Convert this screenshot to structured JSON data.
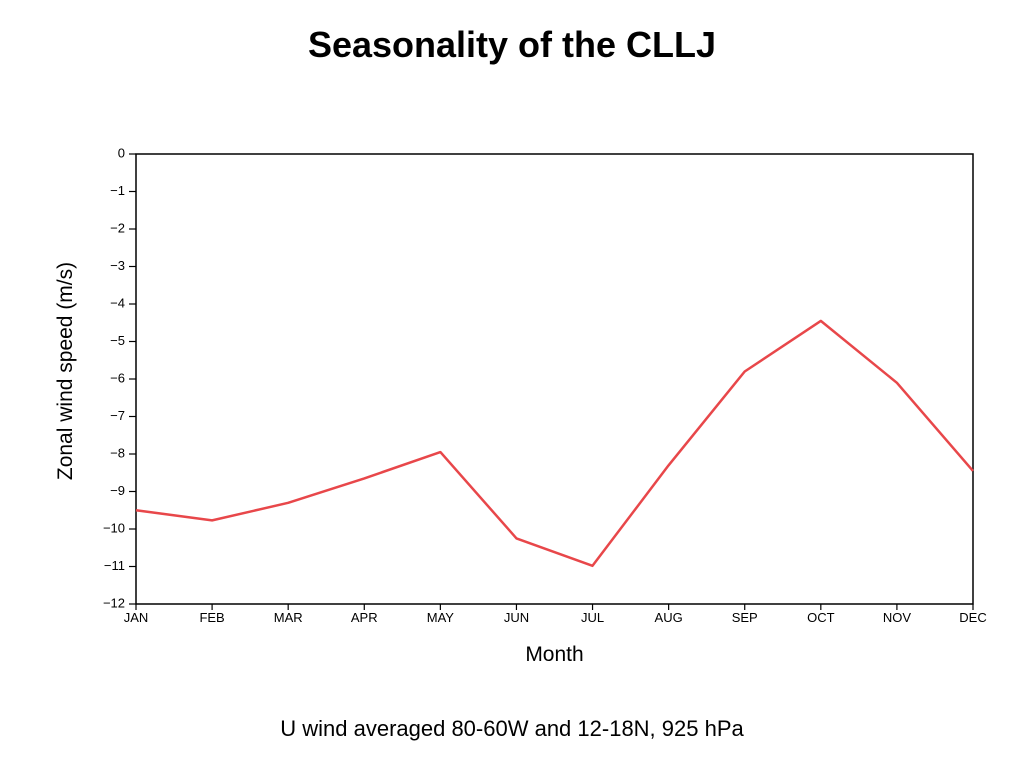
{
  "chart_data": {
    "type": "line",
    "title": "Seasonality of the CLLJ",
    "caption": "U wind averaged 80-60W and 12-18N, 925 hPa",
    "xlabel": "Month",
    "ylabel": "Zonal wind speed (m/s)",
    "categories": [
      "JAN",
      "FEB",
      "MAR",
      "APR",
      "MAY",
      "JUN",
      "JUL",
      "AUG",
      "SEP",
      "OCT",
      "NOV",
      "DEC"
    ],
    "y_ticks": [
      "0",
      "−1",
      "−2",
      "−3",
      "−4",
      "−5",
      "−6",
      "−7",
      "−8",
      "−9",
      "−10",
      "−11",
      "−12"
    ],
    "ylim": [
      -12,
      0
    ],
    "grid": false,
    "legend": "none",
    "series": [
      {
        "color": "#e8474a",
        "values": [
          -9.5,
          -9.77,
          -9.3,
          -8.65,
          -7.95,
          -10.25,
          -10.98,
          -8.3,
          -5.8,
          -4.45,
          -6.1,
          -8.45
        ]
      }
    ]
  }
}
